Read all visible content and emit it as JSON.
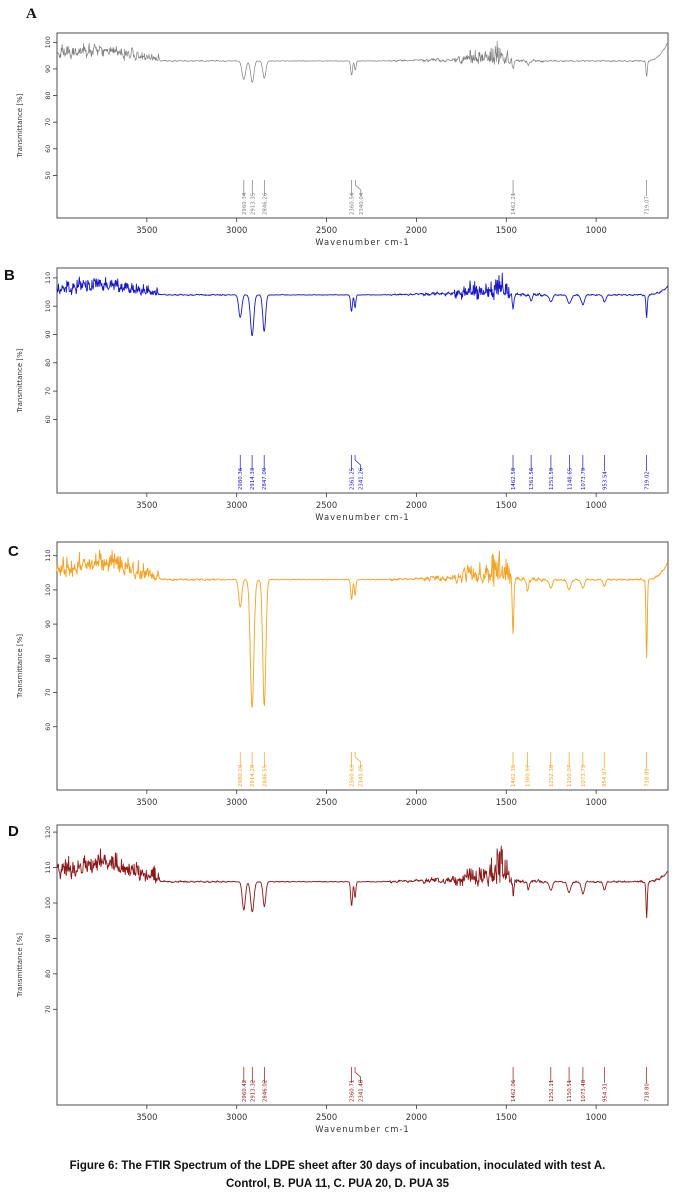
{
  "figure": {
    "caption_line1": "Figure 6: The FTIR Spectrum of the LDPE sheet after 30 days of incubation, inoculated with test A.",
    "caption_line2": "Control, B. PUA 11, C. PUA 20, D. PUA 35"
  },
  "chart_data": [
    {
      "type": "line",
      "panel": "A",
      "series_name": "Control",
      "color": "#7e7e7e",
      "xlabel": "Wavenumber cm-1",
      "ylabel": "Transmittance [%]",
      "xlim": [
        4000,
        600
      ],
      "x_ticks": [
        3500,
        3000,
        2500,
        2000,
        1500,
        1000
      ],
      "ylim": [
        34,
        103.5
      ],
      "y_ticks": [
        100,
        90,
        80,
        70,
        60,
        50
      ],
      "baseline_transmittance": 93,
      "labeled_peaks": [
        {
          "wavenumber": 2960.34,
          "transmittance": 86.0,
          "width": 14,
          "label": "2960.34"
        },
        {
          "wavenumber": 2913.35,
          "transmittance": 85.0,
          "width": 13,
          "label": "2913.35"
        },
        {
          "wavenumber": 2846.26,
          "transmittance": 86.5,
          "width": 12,
          "label": "2846.26"
        },
        {
          "wavenumber": 2360.54,
          "transmittance": 87.5,
          "width": 7,
          "label": "2360.54"
        },
        {
          "wavenumber": 2340.04,
          "transmittance": 89.5,
          "width": 6,
          "label": "2340.04"
        },
        {
          "wavenumber": 1462.21,
          "transmittance": 89.5,
          "width": 6,
          "label": "1462.21"
        },
        {
          "wavenumber": 719.07,
          "transmittance": 87.0,
          "width": 5,
          "label": "719.07"
        }
      ],
      "unlabeled_dips": [
        {
          "wavenumber": 1377,
          "transmittance": 91.5,
          "width": 6
        }
      ],
      "noise": {
        "seed": 7,
        "left_lift": 2.2,
        "left_bump": 1.3,
        "left_amp": 1.1,
        "base_amp": 1.35,
        "mid_spike_max": 6.8,
        "end_rise": 7
      }
    },
    {
      "type": "line",
      "panel": "B",
      "series_name": "PUA 11",
      "color": "#1717c6",
      "xlabel": "Wavenumber cm-1",
      "ylabel": "Transmittance [%]",
      "xlim": [
        4000,
        600
      ],
      "x_ticks": [
        3500,
        3000,
        2500,
        2000,
        1500,
        1000
      ],
      "ylim": [
        34,
        113.5
      ],
      "y_ticks": [
        110,
        100,
        90,
        80,
        70,
        60
      ],
      "baseline_transmittance": 104,
      "labeled_peaks": [
        {
          "wavenumber": 2980.36,
          "transmittance": 96.0,
          "width": 12,
          "label": "2980.36"
        },
        {
          "wavenumber": 2914.33,
          "transmittance": 89.5,
          "width": 13,
          "label": "2914.33"
        },
        {
          "wavenumber": 2847.09,
          "transmittance": 91.0,
          "width": 11,
          "label": "2847.09"
        },
        {
          "wavenumber": 2361.25,
          "transmittance": 98.0,
          "width": 7,
          "label": "2361.25"
        },
        {
          "wavenumber": 2341.26,
          "transmittance": 99.5,
          "width": 6,
          "label": "2341.26"
        },
        {
          "wavenumber": 1462.58,
          "transmittance": 98.5,
          "width": 6,
          "label": "1462.58"
        },
        {
          "wavenumber": 1361.56,
          "transmittance": 102.0,
          "width": 8,
          "label": "1361.56"
        },
        {
          "wavenumber": 1251.59,
          "transmittance": 101.5,
          "width": 13,
          "label": "1251.59"
        },
        {
          "wavenumber": 1148.65,
          "transmittance": 101.0,
          "width": 15,
          "label": "1148.65"
        },
        {
          "wavenumber": 1073.79,
          "transmittance": 100.5,
          "width": 13,
          "label": "1073.79"
        },
        {
          "wavenumber": 953.54,
          "transmittance": 101.5,
          "width": 11,
          "label": "953.54"
        },
        {
          "wavenumber": 719.02,
          "transmittance": 96.0,
          "width": 5,
          "label": "719.02"
        }
      ],
      "unlabeled_dips": [],
      "noise": {
        "seed": 13,
        "left_lift": 1.7,
        "left_bump": 1.6,
        "left_amp": 1.2,
        "base_amp": 1.35,
        "mid_spike_max": 8,
        "end_rise": 3
      }
    },
    {
      "type": "line",
      "panel": "C",
      "series_name": "PUA 20",
      "color": "#f3a224",
      "xlabel": "Wavenumber cm-1",
      "ylabel": "Transmittance [%]",
      "xlim": [
        4000,
        600
      ],
      "x_ticks": [
        3500,
        3000,
        2500,
        2000,
        1500,
        1000
      ],
      "ylim": [
        41.5,
        114
      ],
      "y_ticks": [
        110,
        100,
        90,
        80,
        70,
        60
      ],
      "baseline_transmittance": 103,
      "labeled_peaks": [
        {
          "wavenumber": 2980.29,
          "transmittance": 95.0,
          "width": 12,
          "label": "2980.29"
        },
        {
          "wavenumber": 2914.29,
          "transmittance": 65.5,
          "width": 14,
          "label": "2914.29"
        },
        {
          "wavenumber": 2846.55,
          "transmittance": 66.0,
          "width": 12,
          "label": "2846.55"
        },
        {
          "wavenumber": 2360.63,
          "transmittance": 97.0,
          "width": 7,
          "label": "2360.63"
        },
        {
          "wavenumber": 2341.05,
          "transmittance": 98.5,
          "width": 6,
          "label": "2341.05"
        },
        {
          "wavenumber": 1462.35,
          "transmittance": 87.0,
          "width": 6,
          "label": "1462.35"
        },
        {
          "wavenumber": 1380.97,
          "transmittance": 99.5,
          "width": 7,
          "label": "1380.97"
        },
        {
          "wavenumber": 1252.38,
          "transmittance": 100.5,
          "width": 12,
          "label": "1252.38"
        },
        {
          "wavenumber": 1150.07,
          "transmittance": 100.0,
          "width": 14,
          "label": "1150.07"
        },
        {
          "wavenumber": 1073.73,
          "transmittance": 100.5,
          "width": 12,
          "label": "1073.73"
        },
        {
          "wavenumber": 954.97,
          "transmittance": 101.0,
          "width": 10,
          "label": "954.97"
        },
        {
          "wavenumber": 718.89,
          "transmittance": 80.0,
          "width": 5,
          "label": "718.89"
        }
      ],
      "unlabeled_dips": [],
      "noise": {
        "seed": 21,
        "left_lift": 2.2,
        "left_bump": 2.4,
        "left_amp": 1.7,
        "base_amp": 1.5,
        "mid_spike_max": 9.5,
        "end_rise": 5
      }
    },
    {
      "type": "line",
      "panel": "D",
      "series_name": "PUA 35",
      "color": "#8c1717",
      "xlabel": "Wavenumber cm-1",
      "ylabel": "Transmittance [%]",
      "xlim": [
        4000,
        600
      ],
      "x_ticks": [
        3500,
        3000,
        2500,
        2000,
        1500,
        1000
      ],
      "ylim": [
        43,
        122
      ],
      "y_ticks": [
        120,
        110,
        100,
        90,
        80,
        70
      ],
      "baseline_transmittance": 106,
      "labeled_peaks": [
        {
          "wavenumber": 2960.42,
          "transmittance": 98.0,
          "width": 12,
          "label": "2960.42"
        },
        {
          "wavenumber": 2913.32,
          "transmittance": 97.5,
          "width": 13,
          "label": "2913.32"
        },
        {
          "wavenumber": 2846.02,
          "transmittance": 99.0,
          "width": 11,
          "label": "2846.02"
        },
        {
          "wavenumber": 2360.71,
          "transmittance": 99.0,
          "width": 7,
          "label": "2360.71"
        },
        {
          "wavenumber": 2341.48,
          "transmittance": 101.5,
          "width": 6,
          "label": "2341.48"
        },
        {
          "wavenumber": 1462.06,
          "transmittance": 101.5,
          "width": 6,
          "label": "1462.06"
        },
        {
          "wavenumber": 1252.11,
          "transmittance": 103.5,
          "width": 12,
          "label": "1252.11"
        },
        {
          "wavenumber": 1150.51,
          "transmittance": 103.0,
          "width": 14,
          "label": "1150.51"
        },
        {
          "wavenumber": 1073.48,
          "transmittance": 102.5,
          "width": 12,
          "label": "1073.48"
        },
        {
          "wavenumber": 954.31,
          "transmittance": 103.5,
          "width": 10,
          "label": "954.31"
        },
        {
          "wavenumber": 718.8,
          "transmittance": 96.0,
          "width": 5,
          "label": "718.80"
        }
      ],
      "unlabeled_dips": [
        {
          "wavenumber": 1377,
          "transmittance": 103.5,
          "width": 6
        }
      ],
      "noise": {
        "seed": 42,
        "left_lift": 2.6,
        "left_bump": 2.2,
        "left_amp": 1.5,
        "base_amp": 1.5,
        "mid_spike_max": 9,
        "end_rise": 3
      }
    }
  ]
}
